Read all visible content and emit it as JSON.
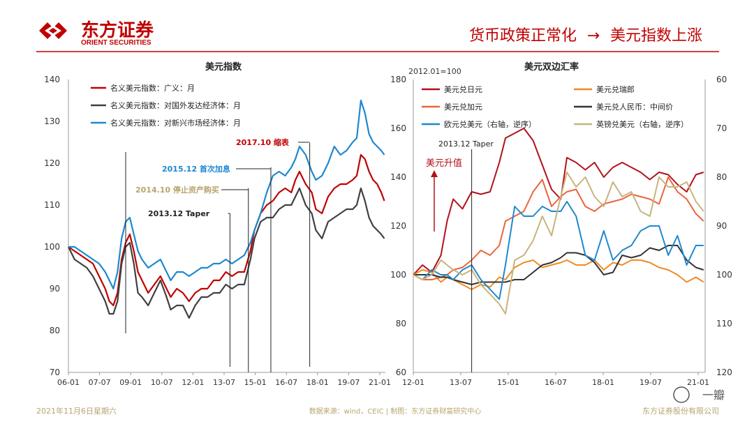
{
  "header": {
    "brand_cn": "东方证券",
    "brand_en": "ORIENT SECURITIES",
    "slogan_left": "货币政策正常化",
    "arrow": "→",
    "slogan_right": "美元指数上涨"
  },
  "footer": {
    "date": "2021年11月6日星期六",
    "source": "数据来源：wind，CEIC | 制图：东方证券财富研究中心",
    "company": "东方证券股份有限公司",
    "watermark": "一瓣"
  },
  "colors": {
    "brand_red": "#c00000",
    "nominal_broad": "#c00000",
    "advanced": "#404040",
    "emerging": "#1e88d0",
    "usdjpy": "#b0121b",
    "usdchf": "#f08a24",
    "usdcad": "#e8663c",
    "usdcny": "#333333",
    "eurusd": "#1e88d0",
    "gbpusd": "#c8b37c",
    "ann_2017": "#c00000",
    "ann_2015": "#1e88d0",
    "ann_2014": "#b8a46e",
    "ann_2013": "#222222"
  },
  "chart_data": [
    {
      "type": "line",
      "title": "美元指数",
      "x_ticks": [
        "06-01",
        "07-07",
        "09-01",
        "10-07",
        "12-01",
        "13-07",
        "15-01",
        "16-07",
        "18-01",
        "19-07",
        "21-01"
      ],
      "ylim": [
        70,
        140
      ],
      "y_ticks": [
        70,
        80,
        90,
        100,
        110,
        120,
        130,
        140
      ],
      "x_range": [
        2006.0,
        2021.5
      ],
      "series": [
        {
          "name": "名义美元指数：广义：月",
          "color": "#c00000",
          "x": [
            2006.0,
            2006.3,
            2006.6,
            2006.9,
            2007.2,
            2007.5,
            2007.8,
            2008.0,
            2008.2,
            2008.4,
            2008.6,
            2008.8,
            2009.0,
            2009.2,
            2009.4,
            2009.6,
            2009.9,
            2010.2,
            2010.5,
            2010.8,
            2011.0,
            2011.3,
            2011.6,
            2011.9,
            2012.2,
            2012.5,
            2012.8,
            2013.1,
            2013.4,
            2013.7,
            2014.0,
            2014.3,
            2014.6,
            2014.9,
            2015.1,
            2015.4,
            2015.7,
            2016.0,
            2016.3,
            2016.6,
            2016.9,
            2017.1,
            2017.3,
            2017.6,
            2017.9,
            2018.1,
            2018.4,
            2018.7,
            2019.0,
            2019.3,
            2019.6,
            2019.9,
            2020.1,
            2020.3,
            2020.5,
            2020.7,
            2020.9,
            2021.1,
            2021.3,
            2021.45
          ],
          "values": [
            100,
            99,
            98,
            97,
            96,
            93,
            90,
            87,
            86,
            89,
            97,
            101,
            103,
            99,
            94,
            92,
            89,
            91,
            93,
            90,
            88,
            90,
            89,
            87,
            89,
            90,
            90,
            92,
            92,
            94,
            93,
            94,
            94,
            99,
            104,
            108,
            110,
            111,
            113,
            114,
            113,
            116,
            118,
            115,
            113,
            109,
            108,
            112,
            114,
            115,
            115,
            116,
            117,
            122,
            121,
            118,
            116,
            115,
            113,
            111
          ]
        },
        {
          "name": "名义美元指数：对国外发达经济体：月",
          "color": "#404040",
          "x": [
            2006.0,
            2006.3,
            2006.6,
            2006.9,
            2007.2,
            2007.5,
            2007.8,
            2008.0,
            2008.2,
            2008.4,
            2008.6,
            2008.8,
            2009.0,
            2009.2,
            2009.4,
            2009.6,
            2009.9,
            2010.2,
            2010.5,
            2010.8,
            2011.0,
            2011.3,
            2011.6,
            2011.9,
            2012.2,
            2012.5,
            2012.8,
            2013.1,
            2013.4,
            2013.7,
            2014.0,
            2014.3,
            2014.6,
            2014.9,
            2015.1,
            2015.4,
            2015.7,
            2016.0,
            2016.3,
            2016.6,
            2016.9,
            2017.1,
            2017.3,
            2017.6,
            2017.9,
            2018.1,
            2018.4,
            2018.7,
            2019.0,
            2019.3,
            2019.6,
            2019.9,
            2020.1,
            2020.3,
            2020.5,
            2020.7,
            2020.9,
            2021.1,
            2021.3,
            2021.45
          ],
          "values": [
            100,
            97,
            96,
            95,
            93,
            90,
            87,
            84,
            84,
            87,
            96,
            100,
            101,
            96,
            89,
            88,
            86,
            89,
            92,
            88,
            85,
            86,
            86,
            83,
            86,
            88,
            88,
            89,
            89,
            91,
            90,
            91,
            91,
            97,
            102,
            106,
            107,
            107,
            109,
            110,
            110,
            112,
            114,
            110,
            108,
            104,
            102,
            106,
            107,
            108,
            109,
            109,
            110,
            114,
            111,
            107,
            105,
            104,
            103,
            102
          ]
        },
        {
          "name": "名义美元指数：对新兴市场经济体：月",
          "color": "#1e88d0",
          "x": [
            2006.0,
            2006.3,
            2006.6,
            2006.9,
            2007.2,
            2007.5,
            2007.8,
            2008.0,
            2008.2,
            2008.4,
            2008.6,
            2008.8,
            2009.0,
            2009.2,
            2009.4,
            2009.6,
            2009.9,
            2010.2,
            2010.5,
            2010.8,
            2011.0,
            2011.3,
            2011.6,
            2011.9,
            2012.2,
            2012.5,
            2012.8,
            2013.1,
            2013.4,
            2013.7,
            2014.0,
            2014.3,
            2014.6,
            2014.9,
            2015.1,
            2015.4,
            2015.7,
            2016.0,
            2016.3,
            2016.6,
            2016.9,
            2017.1,
            2017.3,
            2017.6,
            2017.9,
            2018.1,
            2018.4,
            2018.7,
            2019.0,
            2019.3,
            2019.6,
            2019.9,
            2020.1,
            2020.3,
            2020.5,
            2020.7,
            2020.9,
            2021.1,
            2021.3,
            2021.45
          ],
          "values": [
            100,
            100,
            99,
            98,
            97,
            96,
            94,
            92,
            90,
            94,
            102,
            106,
            107,
            103,
            99,
            97,
            95,
            96,
            97,
            94,
            92,
            94,
            94,
            93,
            94,
            95,
            95,
            96,
            96,
            97,
            96,
            97,
            98,
            101,
            104,
            108,
            113,
            117,
            118,
            117,
            119,
            121,
            124,
            122,
            118,
            116,
            117,
            120,
            124,
            122,
            123,
            125,
            126,
            135,
            132,
            127,
            125,
            124,
            123,
            122
          ]
        }
      ],
      "annotations": [
        {
          "label": "2017.10 缩表",
          "x": 2017.8,
          "color": "#c00000"
        },
        {
          "label": "2015.12 首次加息",
          "x": 2015.9,
          "color": "#1e88d0"
        },
        {
          "label": "2014.10 停止资产购买",
          "x": 2014.8,
          "color": "#b8a46e"
        },
        {
          "label": "2013.12 Taper",
          "x": 2013.9,
          "color": "#222222"
        },
        {
          "label": "",
          "x": 2008.8,
          "color": "#222222"
        }
      ]
    },
    {
      "type": "line",
      "title": "美元双边汇率",
      "unit_note": "2012.01=100",
      "x_ticks": [
        "12-01",
        "13-07",
        "15-01",
        "16-07",
        "18-01",
        "19-07",
        "21-01"
      ],
      "ylim": [
        60,
        180
      ],
      "y_ticks": [
        60,
        80,
        100,
        120,
        140,
        160,
        180
      ],
      "y2lim": [
        120,
        60
      ],
      "y2_ticks": [
        60,
        70,
        80,
        90,
        100,
        110,
        120
      ],
      "x_range": [
        2012.0,
        2021.5
      ],
      "arrow_label": "美元升值",
      "taper_label": "2013.12 Taper",
      "taper_x": 2013.9,
      "series": [
        {
          "name": "美元兑日元",
          "color": "#b0121b",
          "axis": "left",
          "x": [
            2012.0,
            2012.3,
            2012.6,
            2012.9,
            2013.1,
            2013.3,
            2013.6,
            2013.9,
            2014.2,
            2014.5,
            2014.8,
            2015.0,
            2015.3,
            2015.6,
            2015.9,
            2016.2,
            2016.5,
            2016.8,
            2017.0,
            2017.3,
            2017.6,
            2017.9,
            2018.2,
            2018.5,
            2018.8,
            2019.1,
            2019.4,
            2019.7,
            2020.0,
            2020.3,
            2020.6,
            2020.9,
            2021.2,
            2021.45
          ],
          "values": [
            100,
            104,
            101,
            108,
            122,
            131,
            127,
            134,
            133,
            134,
            146,
            156,
            158,
            160,
            155,
            145,
            135,
            131,
            148,
            146,
            143,
            146,
            140,
            144,
            146,
            144,
            142,
            139,
            142,
            141,
            137,
            134,
            141,
            142
          ]
        },
        {
          "name": "美元兑瑞郎",
          "color": "#f08a24",
          "axis": "left",
          "x": [
            2012.0,
            2012.3,
            2012.6,
            2012.9,
            2013.1,
            2013.3,
            2013.6,
            2013.9,
            2014.2,
            2014.5,
            2014.8,
            2015.0,
            2015.3,
            2015.6,
            2015.9,
            2016.2,
            2016.5,
            2016.8,
            2017.0,
            2017.3,
            2017.6,
            2017.9,
            2018.2,
            2018.5,
            2018.8,
            2019.1,
            2019.4,
            2019.7,
            2020.0,
            2020.3,
            2020.6,
            2020.9,
            2021.2,
            2021.45
          ],
          "values": [
            100,
            102,
            101,
            97,
            99,
            98,
            96,
            94,
            96,
            95,
            99,
            98,
            103,
            105,
            106,
            103,
            104,
            105,
            106,
            104,
            104,
            106,
            102,
            105,
            104,
            106,
            106,
            105,
            103,
            102,
            100,
            97,
            99,
            97
          ]
        },
        {
          "name": "美元兑加元",
          "color": "#e8663c",
          "axis": "left",
          "x": [
            2012.0,
            2012.3,
            2012.6,
            2012.9,
            2013.1,
            2013.3,
            2013.6,
            2013.9,
            2014.2,
            2014.5,
            2014.8,
            2015.0,
            2015.3,
            2015.6,
            2015.9,
            2016.2,
            2016.5,
            2016.8,
            2017.0,
            2017.3,
            2017.6,
            2017.9,
            2018.2,
            2018.5,
            2018.8,
            2019.1,
            2019.4,
            2019.7,
            2020.0,
            2020.3,
            2020.6,
            2020.9,
            2021.2,
            2021.45
          ],
          "values": [
            100,
            98,
            98,
            99,
            100,
            102,
            103,
            106,
            110,
            108,
            112,
            122,
            124,
            126,
            134,
            139,
            128,
            132,
            134,
            135,
            128,
            126,
            129,
            130,
            131,
            133,
            132,
            131,
            129,
            140,
            134,
            131,
            125,
            122
          ]
        },
        {
          "name": "美元兑人民币：中间价",
          "color": "#333333",
          "axis": "left",
          "x": [
            2012.0,
            2012.3,
            2012.6,
            2012.9,
            2013.1,
            2013.3,
            2013.6,
            2013.9,
            2014.2,
            2014.5,
            2014.8,
            2015.0,
            2015.3,
            2015.6,
            2015.9,
            2016.2,
            2016.5,
            2016.8,
            2017.0,
            2017.3,
            2017.6,
            2017.9,
            2018.2,
            2018.5,
            2018.8,
            2019.1,
            2019.4,
            2019.7,
            2020.0,
            2020.3,
            2020.6,
            2020.9,
            2021.2,
            2021.45
          ],
          "values": [
            100,
            100,
            100,
            99,
            99,
            98,
            97,
            96,
            97,
            97,
            97,
            97,
            98,
            98,
            101,
            104,
            105,
            107,
            109,
            109,
            108,
            105,
            100,
            101,
            108,
            107,
            108,
            111,
            110,
            112,
            112,
            106,
            103,
            102
          ]
        },
        {
          "name": "欧元兑美元（右轴，逆序）",
          "color": "#1e88d0",
          "axis": "right",
          "x": [
            2012.0,
            2012.3,
            2012.6,
            2012.9,
            2013.1,
            2013.3,
            2013.6,
            2013.9,
            2014.2,
            2014.5,
            2014.8,
            2015.0,
            2015.3,
            2015.6,
            2015.9,
            2016.2,
            2016.5,
            2016.8,
            2017.0,
            2017.3,
            2017.6,
            2017.9,
            2018.2,
            2018.5,
            2018.8,
            2019.1,
            2019.4,
            2019.7,
            2020.0,
            2020.3,
            2020.6,
            2020.9,
            2021.2,
            2021.45
          ],
          "values": [
            100,
            101,
            99,
            100,
            100,
            101,
            99,
            98,
            101,
            103,
            105,
            98,
            86,
            88,
            88,
            86,
            87,
            87,
            85,
            88,
            96,
            97,
            91,
            97,
            95,
            94,
            91,
            90,
            90,
            96,
            92,
            98,
            94,
            94
          ]
        },
        {
          "name": "英镑兑美元（右轴，逆序）",
          "color": "#c8b37c",
          "axis": "right",
          "x": [
            2012.0,
            2012.3,
            2012.6,
            2012.9,
            2013.1,
            2013.3,
            2013.6,
            2013.9,
            2014.2,
            2014.5,
            2014.8,
            2015.0,
            2015.3,
            2015.6,
            2015.9,
            2016.2,
            2016.5,
            2016.8,
            2017.0,
            2017.3,
            2017.6,
            2017.9,
            2018.2,
            2018.5,
            2018.8,
            2019.1,
            2019.4,
            2019.7,
            2020.0,
            2020.3,
            2020.6,
            2020.9,
            2021.2,
            2021.45
          ],
          "values": [
            100,
            101,
            100,
            97,
            98,
            99,
            100,
            99,
            102,
            104,
            106,
            108,
            97,
            96,
            93,
            88,
            92,
            84,
            79,
            82,
            80,
            84,
            86,
            81,
            84,
            83,
            87,
            88,
            80,
            82,
            82,
            81,
            85,
            87
          ]
        }
      ]
    }
  ]
}
